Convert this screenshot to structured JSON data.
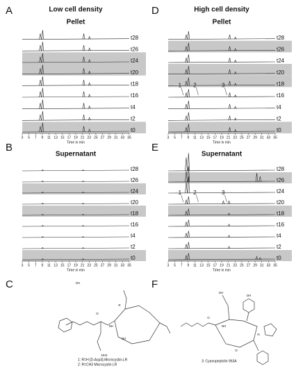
{
  "panels": [
    {
      "letter": "A",
      "title": "Low cell density",
      "subtitle": "Pellet",
      "xlabel": "Time in min",
      "xlim": [
        3,
        35
      ],
      "xticks": [
        3,
        5,
        7,
        9,
        11,
        13,
        15,
        17,
        19,
        21,
        23,
        25,
        27,
        29,
        31,
        33,
        35
      ],
      "traces": [
        {
          "label": "t28",
          "shaded": false,
          "peaks": [
            [
              8.4,
              0.5
            ],
            [
              9.1,
              0.8
            ],
            [
              21.4,
              0.5
            ],
            [
              23.1,
              0.25
            ]
          ]
        },
        {
          "label": "t26",
          "shaded": false,
          "peaks": [
            [
              8.4,
              0.5
            ],
            [
              9.1,
              0.8
            ],
            [
              21.4,
              0.5
            ],
            [
              23.1,
              0.25
            ]
          ]
        },
        {
          "label": "t24",
          "shaded": true,
          "peaks": [
            [
              8.4,
              0.5
            ],
            [
              9.1,
              0.8
            ],
            [
              21.4,
              0.5
            ],
            [
              23.1,
              0.25
            ]
          ]
        },
        {
          "label": "t20",
          "shaded": true,
          "peaks": [
            [
              8.4,
              0.5
            ],
            [
              9.1,
              0.8
            ],
            [
              21.4,
              0.5
            ],
            [
              23.1,
              0.25
            ]
          ]
        },
        {
          "label": "t18",
          "shaded": false,
          "peaks": [
            [
              8.4,
              0.5
            ],
            [
              9.1,
              0.8
            ],
            [
              21.4,
              0.5
            ],
            [
              23.1,
              0.25
            ]
          ]
        },
        {
          "label": "t16",
          "shaded": false,
          "peaks": [
            [
              8.4,
              0.5
            ],
            [
              9.1,
              0.8
            ],
            [
              21.4,
              0.5
            ],
            [
              23.1,
              0.25
            ]
          ]
        },
        {
          "label": "t4",
          "shaded": false,
          "peaks": [
            [
              8.4,
              0.5
            ],
            [
              9.1,
              0.8
            ],
            [
              21.4,
              0.5
            ],
            [
              23.1,
              0.25
            ]
          ]
        },
        {
          "label": "t2",
          "shaded": false,
          "peaks": [
            [
              8.4,
              0.5
            ],
            [
              9.1,
              0.8
            ],
            [
              21.4,
              0.5
            ],
            [
              23.1,
              0.25
            ]
          ]
        },
        {
          "label": "t0",
          "shaded": true,
          "peaks": [
            [
              8.4,
              0.5
            ],
            [
              9.1,
              0.8
            ],
            [
              21.4,
              0.5
            ],
            [
              23.1,
              0.25
            ]
          ]
        }
      ]
    },
    {
      "letter": "D",
      "title": "High cell density",
      "subtitle": "Pellet",
      "xlabel": "Time in min",
      "xlim": [
        3,
        35
      ],
      "xticks": [
        3,
        5,
        7,
        9,
        11,
        13,
        15,
        17,
        19,
        21,
        23,
        25,
        27,
        29,
        31,
        33,
        35
      ],
      "traces": [
        {
          "label": "t28",
          "shaded": false,
          "peaks": [
            [
              8.4,
              0.4
            ],
            [
              9.1,
              0.7
            ],
            [
              21.4,
              0.4
            ],
            [
              23.1,
              0.2
            ]
          ]
        },
        {
          "label": "t26",
          "shaded": true,
          "peaks": [
            [
              8.4,
              0.4
            ],
            [
              9.1,
              0.7
            ],
            [
              21.4,
              0.4
            ],
            [
              23.1,
              0.2
            ]
          ]
        },
        {
          "label": "t24",
          "shaded": false,
          "peaks": [
            [
              8.4,
              0.4
            ],
            [
              9.1,
              0.7
            ],
            [
              21.4,
              0.4
            ],
            [
              23.1,
              0.2
            ]
          ]
        },
        {
          "label": "t20",
          "shaded": true,
          "peaks": [
            [
              8.4,
              0.4
            ],
            [
              9.1,
              0.7
            ],
            [
              21.4,
              0.4
            ],
            [
              23.1,
              0.2
            ]
          ]
        },
        {
          "label": "t18",
          "shaded": true,
          "peaks": [
            [
              8.4,
              0.4
            ],
            [
              9.1,
              0.7
            ],
            [
              21.4,
              0.4
            ],
            [
              23.1,
              0.2
            ]
          ]
        },
        {
          "label": "t16",
          "shaded": false,
          "peaks": [
            [
              8.4,
              0.4
            ],
            [
              9.1,
              0.7
            ],
            [
              21.4,
              0.4
            ],
            [
              23.1,
              0.2
            ]
          ],
          "annotations": [
            {
              "text": "1",
              "x": 6.5
            },
            {
              "text": "2",
              "x": 11
            },
            {
              "text": "3",
              "x": 19.5
            }
          ]
        },
        {
          "label": "t4",
          "shaded": false,
          "peaks": [
            [
              8.4,
              0.4
            ],
            [
              9.1,
              0.7
            ],
            [
              21.4,
              0.4
            ],
            [
              23.1,
              0.2
            ]
          ]
        },
        {
          "label": "t2",
          "shaded": false,
          "peaks": [
            [
              8.4,
              0.4
            ],
            [
              9.1,
              0.7
            ],
            [
              21.4,
              0.4
            ],
            [
              23.1,
              0.2
            ]
          ]
        },
        {
          "label": "t0",
          "shaded": true,
          "peaks": [
            [
              8.4,
              0.4
            ],
            [
              9.1,
              0.7
            ],
            [
              21.4,
              0.4
            ],
            [
              23.1,
              0.2
            ]
          ]
        }
      ]
    },
    {
      "letter": "B",
      "subtitle": "Supernatant",
      "xlabel": "Time in min",
      "xlim": [
        3,
        35
      ],
      "xticks": [
        3,
        5,
        7,
        9,
        11,
        13,
        15,
        17,
        19,
        21,
        23,
        25,
        27,
        29,
        31,
        33,
        35
      ],
      "traces": [
        {
          "label": "t28",
          "shaded": false,
          "peaks": [
            [
              9.1,
              0.1
            ],
            [
              21.2,
              0.1
            ]
          ]
        },
        {
          "label": "t26",
          "shaded": false,
          "peaks": [
            [
              9.1,
              0.1
            ],
            [
              21.2,
              0.1
            ]
          ]
        },
        {
          "label": "t24",
          "shaded": true,
          "peaks": [
            [
              9.1,
              0.1
            ],
            [
              21.2,
              0.1
            ]
          ]
        },
        {
          "label": "t20",
          "shaded": false,
          "peaks": [
            [
              9.1,
              0.1
            ],
            [
              21.2,
              0.1
            ]
          ]
        },
        {
          "label": "t18",
          "shaded": true,
          "peaks": [
            [
              9.1,
              0.1
            ],
            [
              21.2,
              0.1
            ]
          ]
        },
        {
          "label": "t16",
          "shaded": false,
          "peaks": [
            [
              9.1,
              0.1
            ],
            [
              21.2,
              0.1
            ]
          ]
        },
        {
          "label": "t4",
          "shaded": false,
          "peaks": [
            [
              9.1,
              0.1
            ],
            [
              21.2,
              0.1
            ]
          ]
        },
        {
          "label": "t2",
          "shaded": false,
          "peaks": [
            [
              9.1,
              0.1
            ],
            [
              21.2,
              0.1
            ]
          ]
        },
        {
          "label": "t0",
          "shaded": true,
          "peaks": [
            [
              9.1,
              0.1
            ],
            [
              21.2,
              0.1
            ]
          ]
        }
      ]
    },
    {
      "letter": "E",
      "subtitle": "Supernatant",
      "xlabel": "Time in min",
      "xlim": [
        3,
        35
      ],
      "xticks": [
        3,
        5,
        7,
        9,
        11,
        13,
        15,
        17,
        19,
        21,
        23,
        25,
        27,
        29,
        31,
        33,
        35
      ],
      "traces": [
        {
          "label": "t28",
          "shaded": false,
          "peaks": [
            [
              8.4,
              1.2
            ],
            [
              9.1,
              1.6
            ]
          ]
        },
        {
          "label": "t26",
          "shaded": true,
          "peaks": [
            [
              8.4,
              1.0
            ],
            [
              9.1,
              1.4
            ],
            [
              29.5,
              0.8
            ],
            [
              30.5,
              0.5
            ]
          ]
        },
        {
          "label": "t24",
          "shaded": false,
          "peaks": [
            [
              8.4,
              1.0
            ],
            [
              9.1,
              1.5
            ]
          ]
        },
        {
          "label": "t20",
          "shaded": false,
          "peaks": [
            [
              8.4,
              0.4
            ],
            [
              9.1,
              0.7
            ],
            [
              19.5,
              0.3
            ],
            [
              21.2,
              0.3
            ]
          ],
          "annotations": [
            {
              "text": "1",
              "x": 6.5
            },
            {
              "text": "2",
              "x": 11
            },
            {
              "text": "3",
              "x": 19.5
            }
          ]
        },
        {
          "label": "t18",
          "shaded": true,
          "peaks": [
            [
              8.4,
              0.4
            ],
            [
              9.1,
              0.6
            ],
            [
              21.2,
              0.2
            ]
          ]
        },
        {
          "label": "t16",
          "shaded": false,
          "peaks": [
            [
              8.4,
              0.4
            ],
            [
              9.1,
              0.6
            ],
            [
              21.2,
              0.2
            ]
          ]
        },
        {
          "label": "t4",
          "shaded": false,
          "peaks": [
            [
              8.4,
              0.4
            ],
            [
              9.1,
              0.6
            ],
            [
              21.2,
              0.2
            ]
          ]
        },
        {
          "label": "t2",
          "shaded": false,
          "peaks": [
            [
              8.4,
              0.4
            ],
            [
              9.1,
              0.6
            ],
            [
              21.2,
              0.2
            ]
          ]
        },
        {
          "label": "t0",
          "shaded": true,
          "peaks": [
            [
              8.4,
              0.4
            ],
            [
              9.1,
              0.6
            ],
            [
              29.5,
              0.3
            ],
            [
              30.5,
              0.2
            ]
          ]
        }
      ]
    }
  ],
  "structures": [
    {
      "letter": "C",
      "atoms": [
        "OH",
        "O",
        "NH",
        "R",
        "NH2",
        "OH"
      ],
      "captions": [
        "1: R=H     [D-Asp3]-Microcystin-LR",
        "2: R=CH3  Microcystin LR"
      ]
    },
    {
      "letter": "F",
      "atoms": [
        "OH",
        "O",
        "NH",
        "OH",
        "N",
        "O"
      ],
      "captions": [
        "3: Cyanopeptolin 963A"
      ]
    }
  ]
}
